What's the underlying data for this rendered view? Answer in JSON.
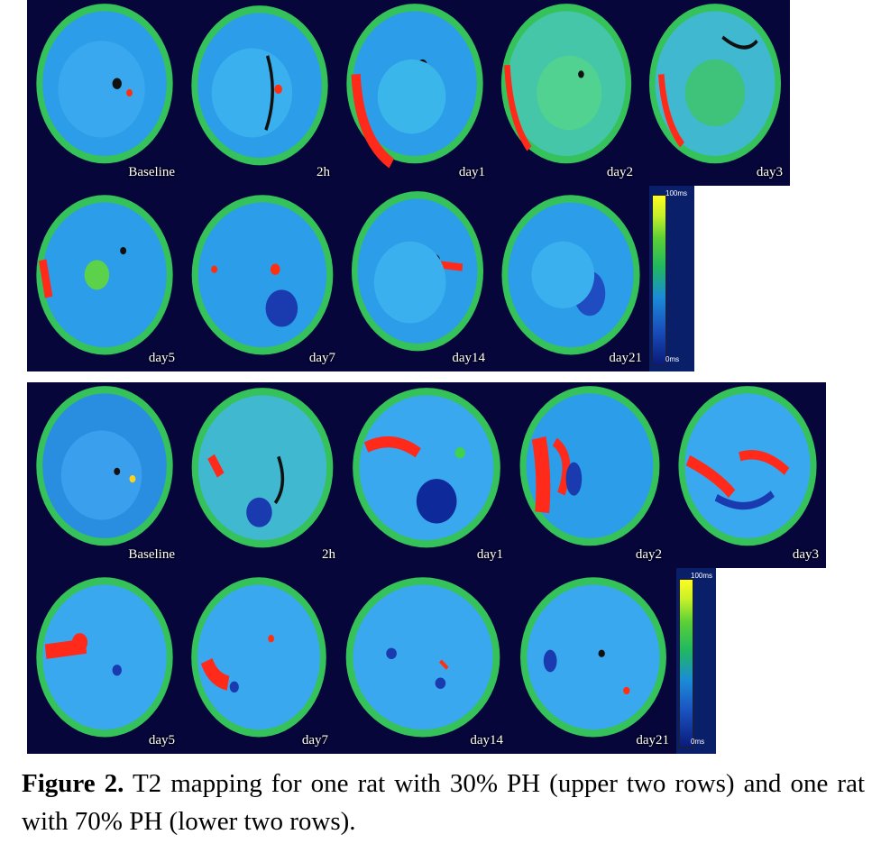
{
  "panels": {
    "A_row1": [
      "Baseline",
      "2h",
      "day1",
      "day2",
      "day3"
    ],
    "A_row2": [
      "day5",
      "day7",
      "day14",
      "day21"
    ],
    "B_row1": [
      "Baseline",
      "2h",
      "day1",
      "day2",
      "day3"
    ],
    "B_row2": [
      "day5",
      "day7",
      "day14",
      "day21"
    ]
  },
  "scale_A": {
    "max": "100ms",
    "min": "0ms"
  },
  "scale_B": {
    "max": "100ms",
    "min": "0ms"
  },
  "caption": {
    "label": "Figure 2.",
    "text": " T2 mapping for one rat with 30% PH (upper two rows) and one rat with 70% PH (lower two rows)."
  },
  "colors": {
    "background": "#06063a",
    "tissue": "#2f9ff0",
    "edema_green": "#3fd24a",
    "edema_red": "#ff2a1a"
  }
}
